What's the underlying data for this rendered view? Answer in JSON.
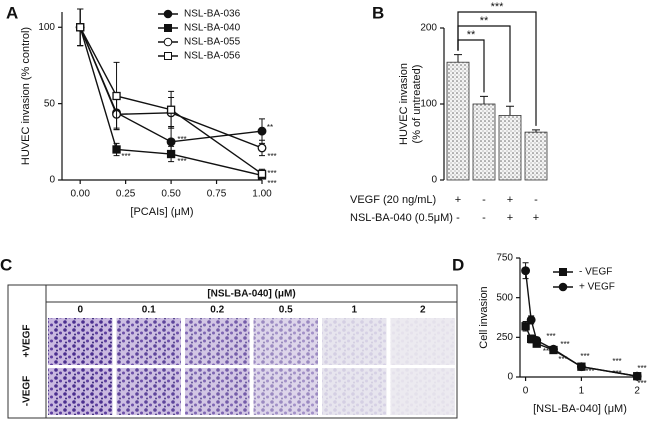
{
  "chart_data": [
    {
      "type": "line",
      "panel_label": "A",
      "xlabel": "[PCAIs] (μM)",
      "ylabel": "HUVEC invasion (% control)",
      "x": [
        0,
        0.2,
        0.5,
        1
      ],
      "series": [
        {
          "name": "NSL-BA-036",
          "marker": "circle",
          "filled": true,
          "color": "#111111",
          "values": [
            100,
            44,
            25,
            32
          ],
          "errors": [
            12,
            10,
            10,
            8
          ]
        },
        {
          "name": "NSL-BA-040",
          "marker": "square",
          "filled": true,
          "color": "#111111",
          "values": [
            100,
            20,
            17,
            3
          ],
          "errors": [
            12,
            4,
            5,
            2
          ]
        },
        {
          "name": "NSL-BA-055",
          "marker": "circle",
          "filled": false,
          "color": "#111111",
          "values": [
            100,
            43,
            44,
            21
          ],
          "errors": [
            12,
            10,
            10,
            5
          ]
        },
        {
          "name": "NSL-BA-056",
          "marker": "square",
          "filled": false,
          "color": "#111111",
          "values": [
            100,
            55,
            46,
            4
          ],
          "errors": [
            12,
            22,
            12,
            3
          ]
        }
      ],
      "xlim": [
        -0.1,
        1.0
      ],
      "ylim": [
        0,
        110
      ],
      "xticks": [
        {
          "value": 0,
          "label": "0.00"
        },
        {
          "value": 0.25,
          "label": "0.25"
        },
        {
          "value": 0.5,
          "label": "0.50"
        },
        {
          "value": 0.75,
          "label": "0.75"
        },
        {
          "value": 1,
          "label": "1.00"
        }
      ],
      "yticks": [
        0,
        50,
        100
      ],
      "annotations": [
        "***",
        "***",
        "***",
        "**",
        "***",
        "***",
        "***"
      ]
    },
    {
      "type": "bar",
      "panel_label": "B",
      "ylabel": [
        "HUVEC invasion",
        "(% of untreated)"
      ],
      "values": [
        155,
        100,
        85,
        63
      ],
      "errors": [
        10,
        10,
        12,
        3
      ],
      "treatments": [
        {
          "name": "VEGF (20 ng/mL)",
          "values": [
            "+",
            "-",
            "+",
            "-"
          ]
        },
        {
          "name": "NSL-BA-040 (0.5μM)",
          "values": [
            "-",
            "-",
            "+",
            "+"
          ]
        }
      ],
      "ylim": [
        0,
        200
      ],
      "yticks": [
        0,
        100,
        200
      ],
      "annotations": [
        "**",
        "**",
        "***"
      ]
    },
    {
      "type": "line",
      "panel_label": "D",
      "xlabel": "[NSL-BA-040] (μM)",
      "ylabel": "Cell invasion",
      "x": [
        0,
        0.1,
        0.2,
        0.5,
        1,
        2
      ],
      "series": [
        {
          "name": "- VEGF",
          "marker": "square",
          "filled": true,
          "color": "#111111",
          "values": [
            320,
            240,
            210,
            170,
            65,
            5
          ],
          "errors": [
            30,
            25,
            20,
            15,
            10,
            3
          ]
        },
        {
          "name": "+ VEGF",
          "marker": "circle",
          "filled": true,
          "color": "#111111",
          "values": [
            670,
            360,
            230,
            175,
            65,
            5
          ],
          "errors": [
            50,
            25,
            20,
            15,
            10,
            3
          ]
        }
      ],
      "xlim": [
        -0.1,
        2.05
      ],
      "ylim": [
        0,
        750
      ],
      "xticks": [
        0,
        1,
        2
      ],
      "yticks": [
        0,
        250,
        500,
        750
      ],
      "annotations": [
        "***",
        "**",
        "***",
        "***",
        "***",
        "***",
        "***",
        "***",
        "***",
        "***"
      ]
    }
  ],
  "panel_c": {
    "panel_label": "C",
    "header": "[NSL-BA-040] (μM)",
    "columns": [
      0,
      0.1,
      0.2,
      0.5,
      1,
      2
    ],
    "rows": [
      "+VEGF",
      "-VEGF"
    ]
  }
}
